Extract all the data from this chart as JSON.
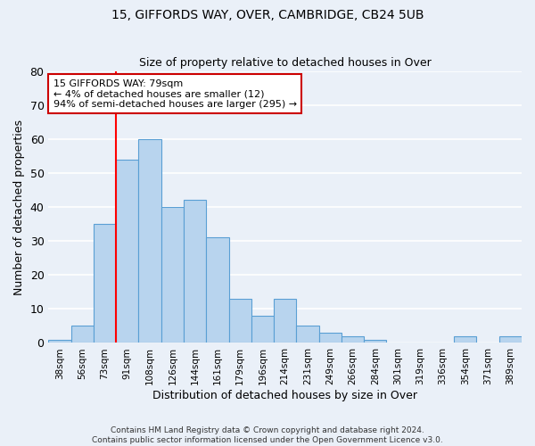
{
  "title1": "15, GIFFORDS WAY, OVER, CAMBRIDGE, CB24 5UB",
  "title2": "Size of property relative to detached houses in Over",
  "xlabel": "Distribution of detached houses by size in Over",
  "ylabel": "Number of detached properties",
  "bar_labels": [
    "38sqm",
    "56sqm",
    "73sqm",
    "91sqm",
    "108sqm",
    "126sqm",
    "144sqm",
    "161sqm",
    "179sqm",
    "196sqm",
    "214sqm",
    "231sqm",
    "249sqm",
    "266sqm",
    "284sqm",
    "301sqm",
    "319sqm",
    "336sqm",
    "354sqm",
    "371sqm",
    "389sqm"
  ],
  "bar_values": [
    1,
    5,
    35,
    54,
    60,
    40,
    42,
    31,
    13,
    8,
    13,
    5,
    3,
    2,
    1,
    0,
    0,
    0,
    2,
    0,
    2
  ],
  "bar_color": "#b8d4ee",
  "bar_edge_color": "#5a9fd4",
  "background_color": "#eaf0f8",
  "grid_color": "#ffffff",
  "red_line_index": 2,
  "annotation_line1": "15 GIFFORDS WAY: 79sqm",
  "annotation_line2": "← 4% of detached houses are smaller (12)",
  "annotation_line3": "94% of semi-detached houses are larger (295) →",
  "annotation_box_facecolor": "#ffffff",
  "annotation_box_edgecolor": "#cc0000",
  "ylim": [
    0,
    80
  ],
  "yticks": [
    0,
    10,
    20,
    30,
    40,
    50,
    60,
    70,
    80
  ],
  "footer1": "Contains HM Land Registry data © Crown copyright and database right 2024.",
  "footer2": "Contains public sector information licensed under the Open Government Licence v3.0."
}
